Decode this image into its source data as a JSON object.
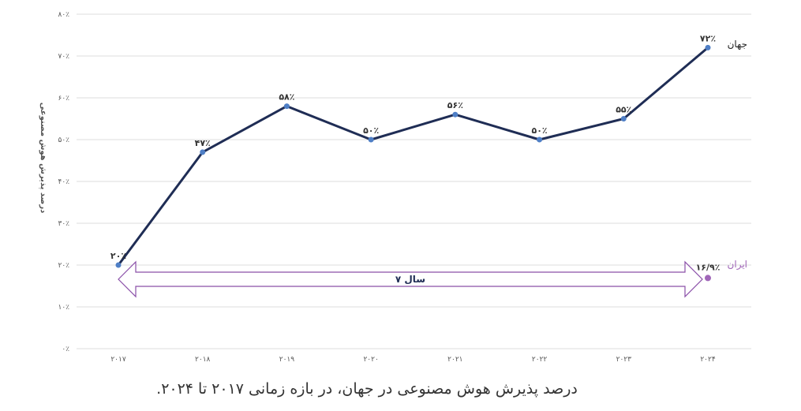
{
  "chart_data": {
    "type": "line",
    "ylabel": "درصد پذیرش هوش مصنوعی",
    "ylim": [
      0,
      80
    ],
    "yticks": [
      0,
      10,
      20,
      30,
      40,
      50,
      60,
      70,
      80
    ],
    "ytick_labels": [
      "۰٪",
      "۱۰٪",
      "۲۰٪",
      "۳۰٪",
      "۴۰٪",
      "۵۰٪",
      "۶۰٪",
      "۷۰٪",
      "۸۰٪"
    ],
    "categories": [
      "۲۰۱۷",
      "۲۰۱۸",
      "۲۰۱۹",
      "۲۰۲۰",
      "۲۰۲۱",
      "۲۰۲۲",
      "۲۰۲۳",
      "۲۰۲۴"
    ],
    "grid": true,
    "series": [
      {
        "name": "جهان",
        "values": [
          20,
          47,
          58,
          50,
          56,
          50,
          55,
          72
        ],
        "labels": [
          "۲۰٪",
          "۴۷٪",
          "۵۸٪",
          "۵۰٪",
          "۵۶٪",
          "۵۰٪",
          "۵۵٪",
          "۷۲٪"
        ],
        "color": "#1f2d55",
        "marker_color": "#4f7fc6"
      },
      {
        "name": "ایران",
        "values": [
          null,
          null,
          null,
          null,
          null,
          null,
          null,
          16.9
        ],
        "labels": [
          null,
          null,
          null,
          null,
          null,
          null,
          null,
          "۱۶/۹٪"
        ],
        "color": "#a066b8"
      }
    ],
    "annotation": {
      "text": "۷ سال",
      "from": "۲۰۱۷",
      "to": "۲۰۲۴",
      "color": "#8a4fa8"
    }
  },
  "caption": "درصد پذیرش هوش مصنوعی در جهان، در بازه زمانی ۲۰۱۷ تا ۲۰۲۴."
}
